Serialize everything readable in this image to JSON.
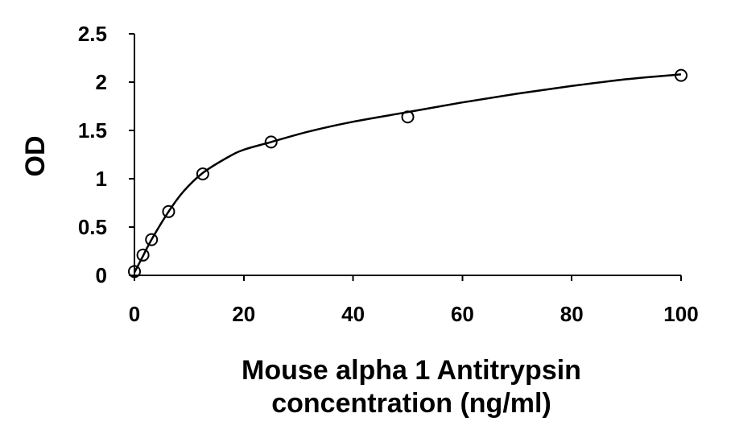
{
  "chart_data": {
    "type": "scatter",
    "title": "",
    "xlabel_lines": [
      "Mouse alpha 1 Antitrypsin",
      "concentration (ng/ml)"
    ],
    "ylabel": "OD",
    "xlim": [
      0,
      100
    ],
    "ylim": [
      0,
      2.5
    ],
    "x_ticks": [
      0,
      20,
      40,
      60,
      80,
      100
    ],
    "x_tick_labels": [
      "0",
      "20",
      "40",
      "60",
      "80",
      "100"
    ],
    "y_ticks": [
      0,
      0.5,
      1,
      1.5,
      2,
      2.5
    ],
    "y_tick_labels": [
      "0",
      "0.5",
      "1",
      "1.5",
      "2",
      "2.5"
    ],
    "grid": false,
    "legend": "none",
    "series": [
      {
        "marker": "open-circle",
        "x": [
          0,
          1.5625,
          3.125,
          6.25,
          12.5,
          25,
          50,
          100
        ],
        "y": [
          0.04,
          0.21,
          0.37,
          0.66,
          1.05,
          1.38,
          1.64,
          2.07
        ]
      }
    ],
    "fit_curve": {
      "style": "smooth-solid",
      "x": [
        0,
        1.5625,
        3.125,
        6.25,
        9,
        12.5,
        17,
        20,
        25,
        32,
        40,
        50,
        60,
        70,
        80,
        90,
        100
      ],
      "y": [
        0.03,
        0.2,
        0.37,
        0.66,
        0.87,
        1.06,
        1.22,
        1.3,
        1.38,
        1.49,
        1.59,
        1.69,
        1.79,
        1.88,
        1.96,
        2.03,
        2.08
      ]
    }
  }
}
